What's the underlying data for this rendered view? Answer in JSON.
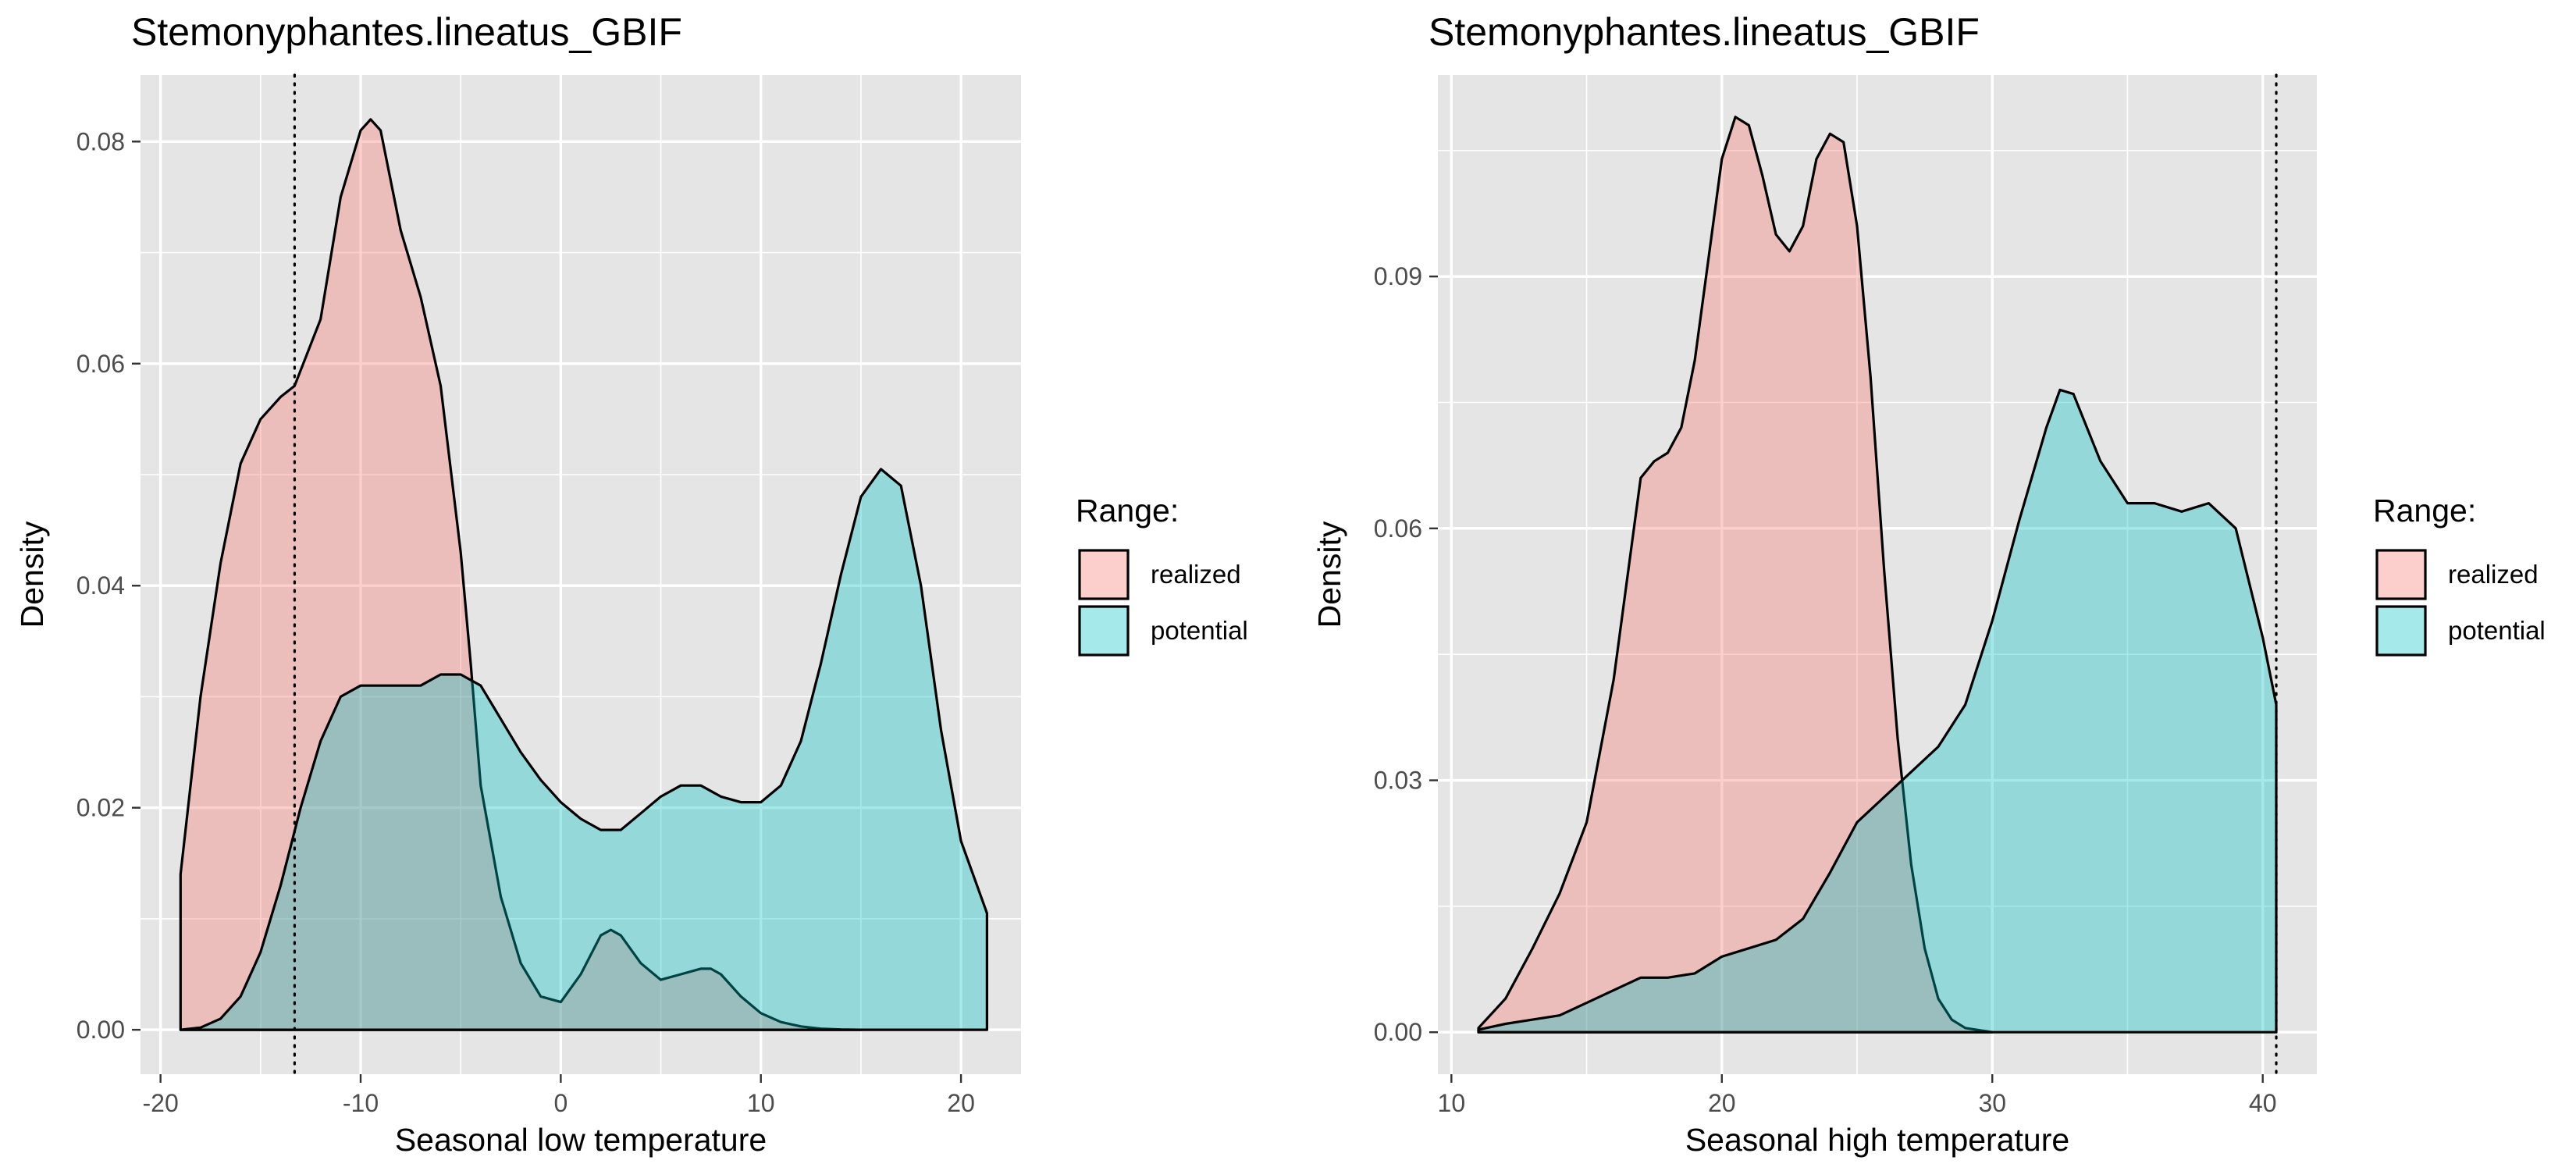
{
  "colors": {
    "panel_bg": "#e5e5e5",
    "grid": "#ffffff",
    "realized": "#f8766d",
    "potential": "#00bfc4",
    "outline": "#000000",
    "text": "#000000",
    "tick_text": "#4d4d4d"
  },
  "chart_data": [
    {
      "type": "area",
      "title": "Stemonyphantes.lineatus_GBIF",
      "xlabel": "Seasonal low temperature",
      "ylabel": "Density",
      "xlim": [
        -21,
        23
      ],
      "ylim": [
        -0.004,
        0.086
      ],
      "x_ticks": [
        -20,
        -10,
        0,
        10,
        20
      ],
      "x_tick_labels": [
        "-20",
        "-10",
        "0",
        "10",
        "20"
      ],
      "y_ticks": [
        0,
        0.02,
        0.04,
        0.06,
        0.08
      ],
      "y_tick_labels": [
        "0.00",
        "0.02",
        "0.04",
        "0.06",
        "0.08"
      ],
      "grid": true,
      "reference_line": {
        "x": -13.3,
        "style": "dotted"
      },
      "legend": {
        "title": "Range:",
        "position": "right",
        "entries": [
          "realized",
          "potential"
        ]
      },
      "series": [
        {
          "name": "realized",
          "x": [
            -19,
            -18,
            -17,
            -16,
            -15,
            -14,
            -13.3,
            -12,
            -11,
            -10,
            -9.5,
            -9,
            -8,
            -7,
            -6,
            -5,
            -4.5,
            -4,
            -3,
            -2,
            -1,
            0,
            1,
            2,
            2.5,
            3,
            4,
            5,
            6,
            7,
            7.5,
            8,
            9,
            10,
            11,
            12,
            13,
            14,
            15
          ],
          "y": [
            0.014,
            0.03,
            0.042,
            0.051,
            0.055,
            0.057,
            0.058,
            0.064,
            0.075,
            0.081,
            0.082,
            0.081,
            0.072,
            0.066,
            0.058,
            0.043,
            0.033,
            0.022,
            0.012,
            0.006,
            0.003,
            0.0025,
            0.005,
            0.0085,
            0.009,
            0.0085,
            0.006,
            0.0045,
            0.005,
            0.0055,
            0.0055,
            0.005,
            0.003,
            0.0015,
            0.0007,
            0.0003,
            0.0001,
            3e-05,
            0
          ]
        },
        {
          "name": "potential",
          "x": [
            -19,
            -18,
            -17,
            -16,
            -15,
            -14,
            -13,
            -12,
            -11,
            -10,
            -9,
            -8,
            -7,
            -6,
            -5,
            -4,
            -3,
            -2,
            -1,
            0,
            1,
            2,
            3,
            4,
            5,
            6,
            7,
            8,
            9,
            10,
            11,
            12,
            13,
            14,
            15,
            16,
            17,
            18,
            19,
            20,
            21,
            21.3
          ],
          "y": [
            0,
            0.0002,
            0.001,
            0.003,
            0.007,
            0.013,
            0.02,
            0.026,
            0.03,
            0.031,
            0.031,
            0.031,
            0.031,
            0.032,
            0.032,
            0.031,
            0.028,
            0.025,
            0.0225,
            0.0205,
            0.019,
            0.018,
            0.018,
            0.0195,
            0.021,
            0.022,
            0.022,
            0.021,
            0.0205,
            0.0205,
            0.022,
            0.026,
            0.033,
            0.041,
            0.048,
            0.0505,
            0.049,
            0.04,
            0.027,
            0.017,
            0.012,
            0.0105
          ]
        }
      ]
    },
    {
      "type": "area",
      "title": "Stemonyphantes.lineatus_GBIF",
      "xlabel": "Seasonal high temperature",
      "ylabel": "Density",
      "xlim": [
        9.5,
        42
      ],
      "ylim": [
        -0.005,
        0.114
      ],
      "x_ticks": [
        10,
        20,
        30,
        40
      ],
      "x_tick_labels": [
        "10",
        "20",
        "30",
        "40"
      ],
      "y_ticks": [
        0,
        0.03,
        0.06,
        0.09
      ],
      "y_tick_labels": [
        "0.00",
        "0.03",
        "0.06",
        "0.09"
      ],
      "grid": true,
      "reference_line": {
        "x": 40.5,
        "style": "dotted"
      },
      "legend": {
        "title": "Range:",
        "position": "right",
        "entries": [
          "realized",
          "potential"
        ]
      },
      "series": [
        {
          "name": "realized",
          "x": [
            11,
            12,
            13,
            14,
            15,
            16,
            17,
            17.5,
            18,
            18.5,
            19,
            19.5,
            20,
            20.5,
            21,
            21.5,
            22,
            22.5,
            23,
            23.5,
            24,
            24.5,
            25,
            25.5,
            26,
            26.5,
            27,
            27.5,
            28,
            28.5,
            29,
            30
          ],
          "y": [
            0.0005,
            0.004,
            0.01,
            0.0165,
            0.025,
            0.042,
            0.066,
            0.068,
            0.069,
            0.072,
            0.08,
            0.092,
            0.104,
            0.109,
            0.108,
            0.102,
            0.095,
            0.093,
            0.096,
            0.104,
            0.107,
            0.106,
            0.096,
            0.078,
            0.055,
            0.035,
            0.02,
            0.01,
            0.004,
            0.0015,
            0.0005,
            0
          ]
        },
        {
          "name": "potential",
          "x": [
            11,
            12,
            13,
            14,
            15,
            16,
            17,
            18,
            19,
            20,
            21,
            22,
            23,
            24,
            25,
            26,
            27,
            28,
            29,
            30,
            31,
            32,
            32.5,
            33,
            34,
            35,
            36,
            37,
            38,
            39,
            40,
            40.5
          ],
          "y": [
            0.0003,
            0.001,
            0.0015,
            0.002,
            0.0035,
            0.005,
            0.0065,
            0.0065,
            0.007,
            0.009,
            0.01,
            0.011,
            0.0135,
            0.019,
            0.025,
            0.028,
            0.031,
            0.034,
            0.039,
            0.049,
            0.061,
            0.072,
            0.0765,
            0.076,
            0.068,
            0.063,
            0.063,
            0.062,
            0.063,
            0.06,
            0.047,
            0.039
          ]
        }
      ]
    }
  ]
}
